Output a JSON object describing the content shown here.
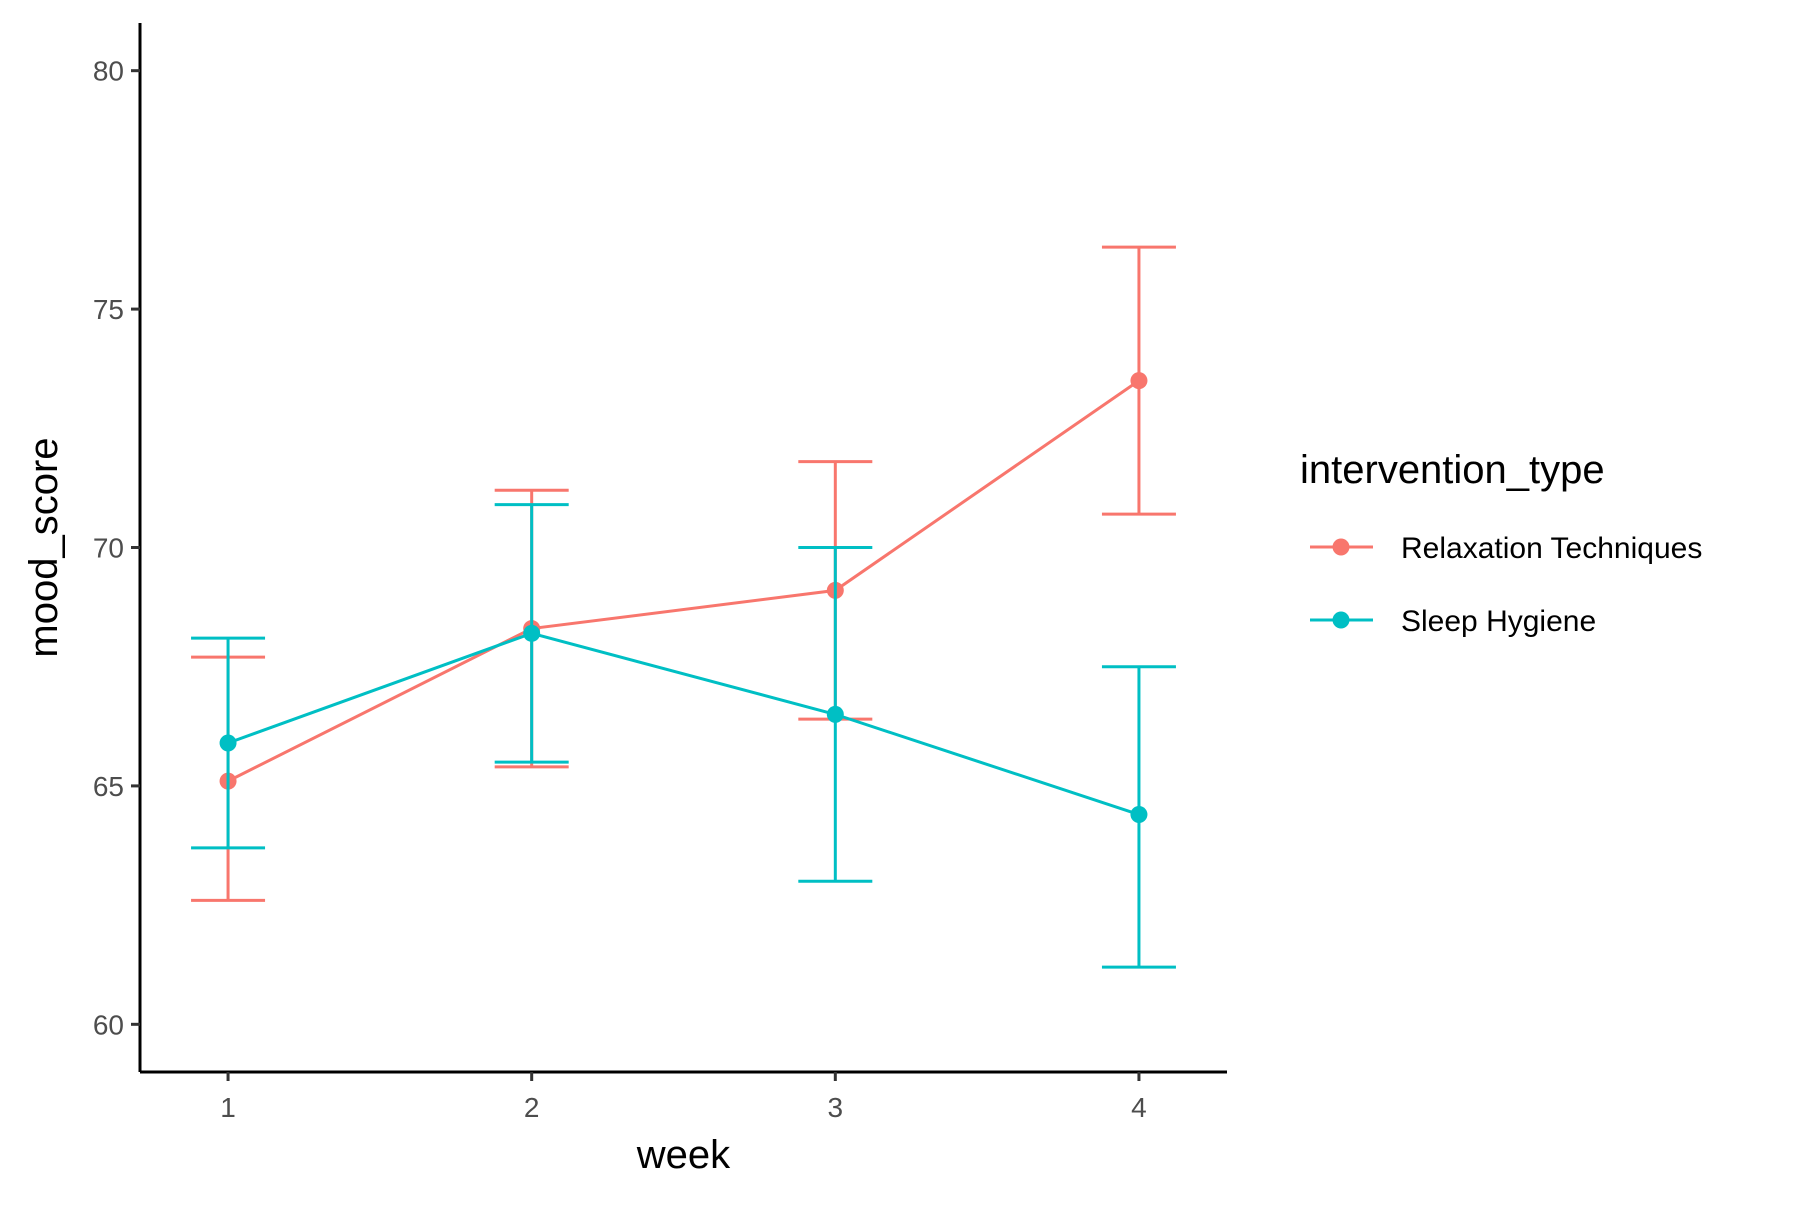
{
  "chart_data": {
    "type": "line",
    "xlabel": "week",
    "ylabel": "mood_score",
    "x": [
      1,
      2,
      3,
      4
    ],
    "x_tick_labels": [
      "1",
      "2",
      "3",
      "4"
    ],
    "xlim": [
      0.71,
      4.29
    ],
    "ylim": [
      59.0,
      81.0
    ],
    "y_ticks": [
      60,
      65,
      70,
      75,
      80
    ],
    "y_tick_labels": [
      "60",
      "65",
      "70",
      "75",
      "80"
    ],
    "grid": false,
    "error_bars": true,
    "legend": {
      "title": "intervention_type",
      "placement": "right"
    },
    "series": [
      {
        "name": "Relaxation Techniques",
        "color": "#F8766D",
        "values": [
          65.1,
          68.3,
          69.1,
          73.5
        ],
        "lower": [
          62.6,
          65.4,
          66.4,
          70.7
        ],
        "upper": [
          67.7,
          71.2,
          71.8,
          76.3
        ]
      },
      {
        "name": "Sleep Hygiene",
        "color": "#00BFC4",
        "values": [
          65.9,
          68.2,
          66.5,
          64.4
        ],
        "lower": [
          63.7,
          65.5,
          63.0,
          61.2
        ],
        "upper": [
          68.1,
          70.9,
          70.0,
          67.5
        ]
      }
    ]
  }
}
